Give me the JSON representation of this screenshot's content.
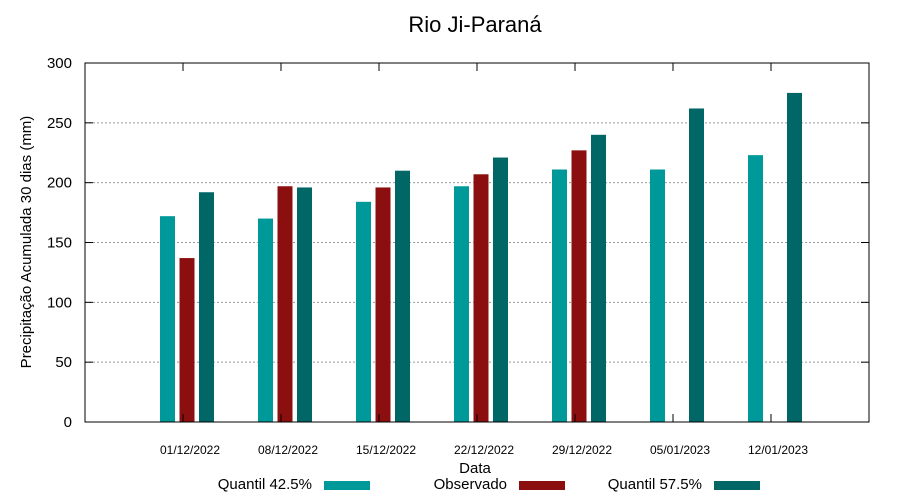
{
  "chart_data": {
    "type": "bar",
    "title": "Rio Ji-Paraná",
    "xlabel": "Data",
    "ylabel": "Precipitação Acumulada 30 dias (mm)",
    "ylim": [
      0,
      300
    ],
    "yticks": [
      0,
      50,
      100,
      150,
      200,
      250,
      300
    ],
    "grid": true,
    "legend_position": "bottom",
    "categories": [
      "01/12/2022",
      "08/12/2022",
      "15/12/2022",
      "22/12/2022",
      "29/12/2022",
      "05/01/2023",
      "12/01/2023"
    ],
    "series": [
      {
        "name": "Quantil 42.5%",
        "color": "#009999",
        "values": [
          172,
          170,
          184,
          197,
          211,
          211,
          223
        ]
      },
      {
        "name": "Observado",
        "color": "#8b0f0f",
        "values": [
          137,
          197,
          196,
          207,
          227,
          null,
          null
        ]
      },
      {
        "name": "Quantil 57.5%",
        "color": "#006666",
        "values": [
          192,
          196,
          210,
          221,
          240,
          262,
          275
        ]
      }
    ]
  }
}
